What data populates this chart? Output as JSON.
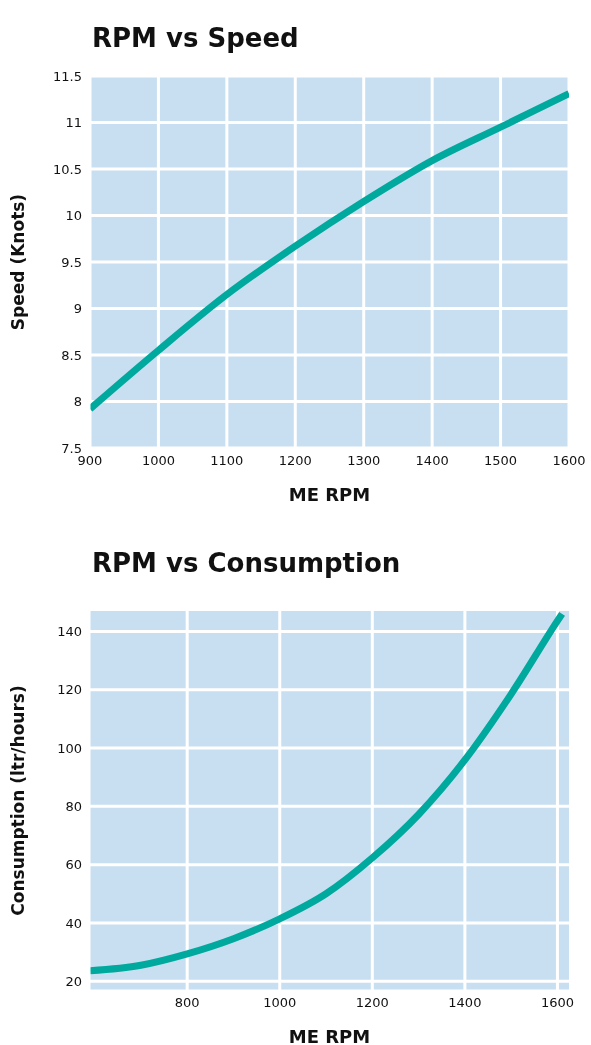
{
  "chart_data": [
    {
      "type": "line",
      "title": "RPM vs Speed",
      "xlabel": "ME RPM",
      "ylabel": "Speed (Knots)",
      "x": [
        900,
        1000,
        1100,
        1200,
        1300,
        1400,
        1500,
        1600
      ],
      "series": [
        {
          "color": "#00a99d",
          "values": [
            7.92,
            8.55,
            9.15,
            9.67,
            10.15,
            10.59,
            10.95,
            11.31
          ]
        }
      ],
      "xlim": [
        900,
        1600
      ],
      "xticks": [
        900,
        1000,
        1100,
        1200,
        1300,
        1400,
        1500,
        1600
      ],
      "ylim": [
        7.5,
        11.5
      ],
      "yticks": [
        7.5,
        8,
        8.5,
        9,
        9.5,
        10,
        10.5,
        11,
        11.5
      ],
      "grid": true,
      "marker": "none",
      "line_style": "solid"
    },
    {
      "type": "line",
      "title": "RPM vs Consumption",
      "xlabel": "ME RPM",
      "ylabel": "Consumption (ltr/hours)",
      "x": [
        590,
        700,
        800,
        900,
        1000,
        1100,
        1200,
        1300,
        1400,
        1500,
        1600,
        1610
      ],
      "series": [
        {
          "color": "#00a99d",
          "values": [
            23.6,
            25.5,
            29.4,
            34.6,
            41.4,
            50,
            62.3,
            77.2,
            95.9,
            118.5,
            143.6,
            146
          ]
        }
      ],
      "xlim": [
        590,
        1625
      ],
      "xticks": [
        800,
        1000,
        1200,
        1400,
        1600
      ],
      "ylim": [
        17,
        147
      ],
      "yticks": [
        20,
        40,
        60,
        80,
        100,
        120,
        140
      ],
      "grid": true,
      "marker": "none",
      "line_style": "solid"
    }
  ]
}
